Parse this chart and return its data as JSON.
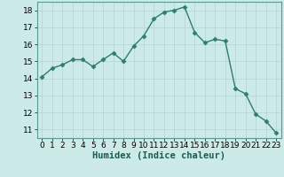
{
  "x": [
    0,
    1,
    2,
    3,
    4,
    5,
    6,
    7,
    8,
    9,
    10,
    11,
    12,
    13,
    14,
    15,
    16,
    17,
    18,
    19,
    20,
    21,
    22,
    23
  ],
  "y": [
    14.1,
    14.6,
    14.8,
    15.1,
    15.1,
    14.7,
    15.1,
    15.5,
    15.0,
    15.9,
    16.5,
    17.5,
    17.9,
    18.0,
    18.2,
    16.7,
    16.1,
    16.3,
    16.2,
    13.4,
    13.1,
    11.9,
    11.5,
    10.8
  ],
  "line_color": "#2e7d6e",
  "marker": "D",
  "markersize": 2.5,
  "bg_color": "#cceae7",
  "grid_major_color": "#b8d8d4",
  "grid_minor_color": "#d8eeeb",
  "xlabel": "Humidex (Indice chaleur)",
  "ylim": [
    10.5,
    18.5
  ],
  "xlim": [
    -0.5,
    23.5
  ],
  "yticks": [
    11,
    12,
    13,
    14,
    15,
    16,
    17,
    18
  ],
  "xticks": [
    0,
    1,
    2,
    3,
    4,
    5,
    6,
    7,
    8,
    9,
    10,
    11,
    12,
    13,
    14,
    15,
    16,
    17,
    18,
    19,
    20,
    21,
    22,
    23
  ],
  "xlabel_fontsize": 7.5,
  "tick_fontsize": 6.5,
  "line_width": 1.0
}
